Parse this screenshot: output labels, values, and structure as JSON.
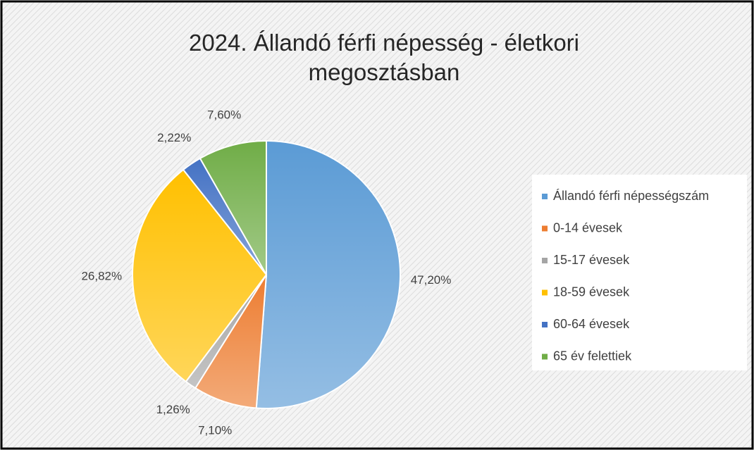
{
  "chart_data": {
    "type": "pie",
    "title": "2024. Állandó férfi népesség -  életkori megosztásban",
    "categories": [
      "Állandó férfi népességszám",
      "0-14 évesek",
      "15-17 évesek",
      "18-59 évesek",
      "60-64 évesek",
      "65 év felettiek"
    ],
    "values": [
      47.2,
      7.1,
      1.26,
      26.82,
      2.22,
      7.6
    ],
    "value_labels": [
      "47,20%",
      "7,10%",
      "1,26%",
      "26,82%",
      "2,22%",
      "7,60%"
    ],
    "colors": [
      "#5b9bd5",
      "#ed7d31",
      "#a5a5a5",
      "#ffc000",
      "#4472c4",
      "#70ad47"
    ],
    "legend": "right"
  }
}
